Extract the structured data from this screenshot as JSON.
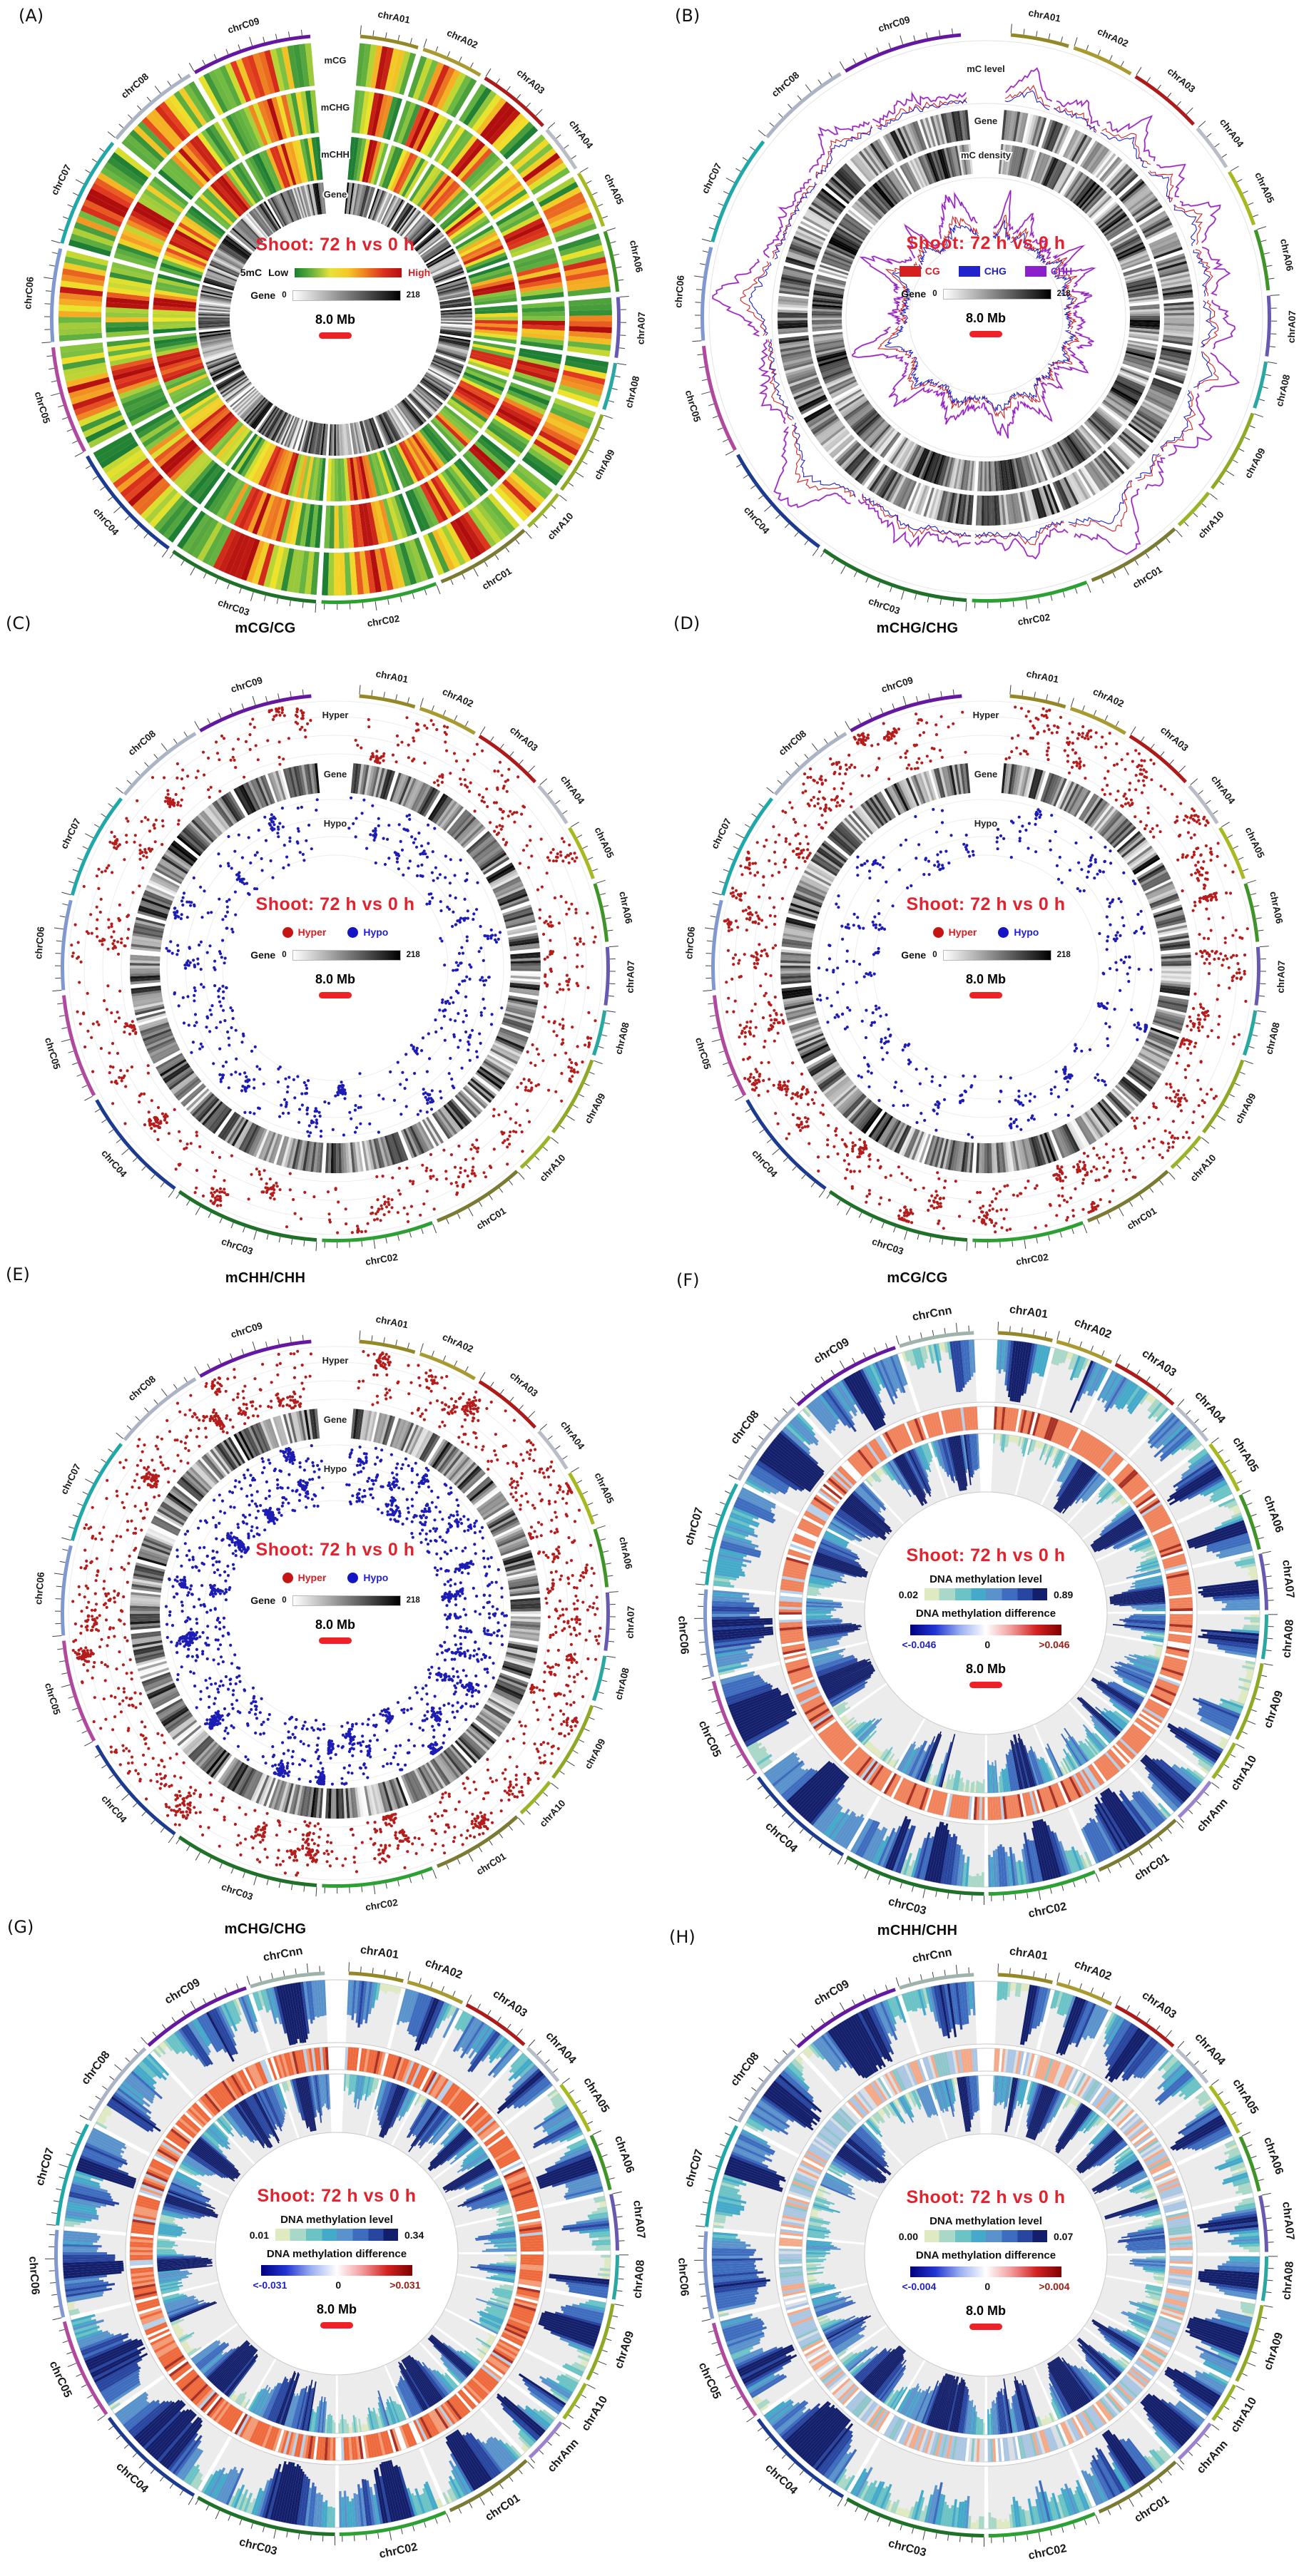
{
  "figure": {
    "caption": "Circos plots of DNA methylation, Shoot: 72 h vs 0 h"
  },
  "chromosome_sets": {
    "set19": {
      "names": [
        "chrA01",
        "chrA02",
        "chrA03",
        "chrA04",
        "chrA05",
        "chrA06",
        "chrA07",
        "chrA08",
        "chrA09",
        "chrA10",
        "chrC01",
        "chrC02",
        "chrC03",
        "chrC04",
        "chrC05",
        "chrC06",
        "chrC07",
        "chrC08",
        "chrC09"
      ],
      "sizes": [
        23.3,
        24.8,
        29.8,
        19.2,
        23.1,
        24.4,
        24.0,
        18.9,
        33.9,
        17.4,
        38.8,
        46.2,
        60.6,
        48.9,
        43.2,
        37.2,
        44.8,
        38.6,
        48.2
      ],
      "colors": [
        "#948727",
        "#a89a30",
        "#ad1a1a",
        "#b8bcc6",
        "#a8b820",
        "#3f9428",
        "#6858b0",
        "#28a8a0",
        "#8fa826",
        "#9ab428",
        "#7a7a33",
        "#2ca032",
        "#1f7028",
        "#1c3a90",
        "#b0489e",
        "#8098d0",
        "#20a8a8",
        "#aab4c4",
        "#6418a0"
      ]
    },
    "set21": {
      "names": [
        "chrA01",
        "chrA02",
        "chrA03",
        "chrA04",
        "chrA05",
        "chrA06",
        "chrA07",
        "chrA08",
        "chrA09",
        "chrA10",
        "chrAnn",
        "chrC01",
        "chrC02",
        "chrC03",
        "chrC04",
        "chrC05",
        "chrC06",
        "chrC07",
        "chrC08",
        "chrC09",
        "chrCnn"
      ],
      "sizes": [
        23.3,
        24.8,
        29.8,
        19.2,
        23.1,
        24.4,
        24.0,
        18.9,
        33.9,
        17.4,
        20.0,
        38.8,
        46.2,
        60.6,
        48.9,
        43.2,
        37.2,
        44.8,
        38.6,
        48.2,
        32.0
      ],
      "colors": [
        "#948727",
        "#a89a30",
        "#ad1a1a",
        "#b8bcc6",
        "#a8b820",
        "#3f9428",
        "#6858b0",
        "#28a8a0",
        "#8fa826",
        "#9ab428",
        "#9b82cc",
        "#7a7a33",
        "#2ca032",
        "#1f7028",
        "#1c3a90",
        "#b0489e",
        "#8098d0",
        "#20a8a8",
        "#aab4c4",
        "#6418a0",
        "#9fb3ab"
      ]
    }
  },
  "panels": [
    {
      "id": "A",
      "label": "(A)",
      "title": "",
      "type": "heat",
      "chrom_set": "set19",
      "ring_labels": [
        "mCG",
        "mCHG",
        "mCHH",
        "Gene"
      ],
      "center": {
        "title": "Shoot: 72 h vs 0 h",
        "smc_label": "5mC",
        "low": "Low",
        "high": "High",
        "gene_label": "Gene",
        "gene_min": "0",
        "gene_max": "218",
        "scale": "8.0 Mb"
      },
      "viz": {
        "seed": 11
      }
    },
    {
      "id": "B",
      "label": "(B)",
      "title": "",
      "type": "line",
      "chrom_set": "set19",
      "ring_labels": [
        "mC level",
        "Gene",
        "mC density"
      ],
      "center": {
        "title": "Shoot: 72 h vs 0 h",
        "cg": "CG",
        "chg": "CHG",
        "chh": "CHH",
        "gene_label": "Gene",
        "gene_min": "0",
        "gene_max": "218",
        "scale": "8.0 Mb"
      },
      "viz": {
        "seed": 22
      }
    },
    {
      "id": "C",
      "label": "(C)",
      "title": "mCG/CG",
      "type": "scatter",
      "chrom_set": "set19",
      "ring_labels": [
        "Hyper",
        "Gene",
        "Hypo"
      ],
      "center": {
        "title": "Shoot: 72 h vs 0 h",
        "hyper": "Hyper",
        "hypo": "Hypo",
        "gene_label": "Gene",
        "gene_min": "0",
        "gene_max": "218",
        "scale": "8.0 Mb"
      },
      "viz": {
        "seed": 33,
        "hyper_n": 850,
        "hypo_n": 620
      }
    },
    {
      "id": "D",
      "label": "(D)",
      "title": "mCHG/CHG",
      "type": "scatter",
      "chrom_set": "set19",
      "ring_labels": [
        "Hyper",
        "Gene",
        "Hypo"
      ],
      "center": {
        "title": "Shoot: 72 h vs 0 h",
        "hyper": "Hyper",
        "hypo": "Hypo",
        "gene_label": "Gene",
        "gene_min": "0",
        "gene_max": "218",
        "scale": "8.0 Mb"
      },
      "viz": {
        "seed": 44,
        "hyper_n": 1250,
        "hypo_n": 430
      }
    },
    {
      "id": "E",
      "label": "(E)",
      "title": "mCHH/CHH",
      "type": "scatter",
      "chrom_set": "set19",
      "ring_labels": [
        "Hyper",
        "Gene",
        "Hypo"
      ],
      "center": {
        "title": "Shoot: 72 h vs 0 h",
        "hyper": "Hyper",
        "hypo": "Hypo",
        "gene_label": "Gene",
        "gene_min": "0",
        "gene_max": "218",
        "scale": "8.0 Mb"
      },
      "viz": {
        "seed": 55,
        "hyper_n": 1500,
        "hypo_n": 1700
      }
    },
    {
      "id": "F",
      "label": "(F)",
      "title": "mCG/CG",
      "type": "hist",
      "chrom_set": "set21",
      "ring_labels": [],
      "center": {
        "title": "Shoot: 72 h vs 0 h",
        "level_label": "DNA methylation level",
        "level_min": "0.02",
        "level_max": "0.89",
        "diff_label": "DNA methylation difference",
        "diff_min": "<-0.046",
        "diff_zero": "0",
        "diff_max": ">0.046",
        "scale": "8.0 Mb"
      },
      "viz": {
        "seed": 66,
        "diff_weights": [
          [
            "#f0835c",
            0.76
          ],
          [
            "#ffffff",
            0.08
          ],
          [
            "#b8cfe8",
            0.08
          ],
          [
            "#a93226",
            0.08
          ]
        ]
      }
    },
    {
      "id": "G",
      "label": "(G)",
      "title": "mCHG/CHG",
      "type": "hist",
      "chrom_set": "set21",
      "ring_labels": [],
      "center": {
        "title": "Shoot: 72 h vs 0 h",
        "level_label": "DNA methylation level",
        "level_min": "0.01",
        "level_max": "0.34",
        "diff_label": "DNA methylation difference",
        "diff_min": "<-0.031",
        "diff_zero": "0",
        "diff_max": ">0.031",
        "scale": "8.0 Mb"
      },
      "viz": {
        "seed": 77,
        "diff_weights": [
          [
            "#ee6a3c",
            0.6
          ],
          [
            "#f29b76",
            0.18
          ],
          [
            "#ffffff",
            0.06
          ],
          [
            "#b8cfe8",
            0.08
          ],
          [
            "#a93226",
            0.08
          ]
        ]
      }
    },
    {
      "id": "H",
      "label": "(H)",
      "title": "mCHH/CHH",
      "type": "hist",
      "chrom_set": "set21",
      "ring_labels": [],
      "center": {
        "title": "Shoot: 72 h vs 0 h",
        "level_label": "DNA methylation level",
        "level_min": "0.00",
        "level_max": "0.07",
        "diff_label": "DNA methylation difference",
        "diff_min": "<-0.004",
        "diff_zero": "0",
        "diff_max": ">0.004",
        "scale": "8.0 Mb"
      },
      "viz": {
        "seed": 88,
        "diff_weights": [
          [
            "#aac6e2",
            0.32
          ],
          [
            "#d9dee5",
            0.2
          ],
          [
            "#f4a988",
            0.26
          ],
          [
            "#8fc6cc",
            0.14
          ],
          [
            "#ffffff",
            0.08
          ]
        ]
      }
    }
  ],
  "colors": {
    "center_title": "#e0232e",
    "hyper": "#b51d1d",
    "hypo": "#1d1db5",
    "cg": "#d62020",
    "chg": "#2323cc",
    "chh": "#8b1fc9",
    "scale_bar": "#ee2226"
  },
  "chart_data": [
    {
      "panel": "A",
      "type": "circos-heatmap",
      "comparison": "Shoot: 72 h vs 0 h",
      "rings": [
        "mCG",
        "mCHG",
        "mCHH",
        "Gene"
      ],
      "smc_scale": [
        "Low",
        "High"
      ],
      "gene_scale": [
        0,
        218
      ],
      "scale_bar": "8.0 Mb",
      "chromosome_set": "set19"
    },
    {
      "panel": "B",
      "type": "circos-line",
      "comparison": "Shoot: 72 h vs 0 h",
      "rings": [
        "mC level",
        "Gene",
        "mC density"
      ],
      "series": [
        "CG",
        "CHG",
        "CHH"
      ],
      "series_colors": [
        "#d62020",
        "#2323cc",
        "#8b1fc9"
      ],
      "gene_scale": [
        0,
        218
      ],
      "scale_bar": "8.0 Mb",
      "chromosome_set": "set19"
    },
    {
      "panel": "C",
      "type": "circos-scatter",
      "title": "mCG/CG",
      "comparison": "Shoot: 72 h vs 0 h",
      "rings": [
        "Hyper",
        "Gene",
        "Hypo"
      ],
      "legend": [
        "Hyper",
        "Hypo"
      ],
      "legend_colors": [
        "#b51d1d",
        "#1d1db5"
      ],
      "gene_scale": [
        0,
        218
      ],
      "scale_bar": "8.0 Mb",
      "chromosome_set": "set19"
    },
    {
      "panel": "D",
      "type": "circos-scatter",
      "title": "mCHG/CHG",
      "comparison": "Shoot: 72 h vs 0 h",
      "rings": [
        "Hyper",
        "Gene",
        "Hypo"
      ],
      "legend": [
        "Hyper",
        "Hypo"
      ],
      "legend_colors": [
        "#b51d1d",
        "#1d1db5"
      ],
      "gene_scale": [
        0,
        218
      ],
      "scale_bar": "8.0 Mb",
      "chromosome_set": "set19"
    },
    {
      "panel": "E",
      "type": "circos-scatter",
      "title": "mCHH/CHH",
      "comparison": "Shoot: 72 h vs 0 h",
      "rings": [
        "Hyper",
        "Gene",
        "Hypo"
      ],
      "legend": [
        "Hyper",
        "Hypo"
      ],
      "legend_colors": [
        "#b51d1d",
        "#1d1db5"
      ],
      "gene_scale": [
        0,
        218
      ],
      "scale_bar": "8.0 Mb",
      "chromosome_set": "set19"
    },
    {
      "panel": "F",
      "type": "circos-histogram",
      "title": "mCG/CG",
      "comparison": "Shoot: 72 h vs 0 h",
      "methylation_level_range": [
        0.02,
        0.89
      ],
      "methylation_difference_range": [
        "<-0.046",
        "0",
        ">0.046"
      ],
      "scale_bar": "8.0 Mb",
      "chromosome_set": "set21"
    },
    {
      "panel": "G",
      "type": "circos-histogram",
      "title": "mCHG/CHG",
      "comparison": "Shoot: 72 h vs 0 h",
      "methylation_level_range": [
        0.01,
        0.34
      ],
      "methylation_difference_range": [
        "<-0.031",
        "0",
        ">0.031"
      ],
      "scale_bar": "8.0 Mb",
      "chromosome_set": "set21"
    },
    {
      "panel": "H",
      "type": "circos-histogram",
      "title": "mCHH/CHH",
      "comparison": "Shoot: 72 h vs 0 h",
      "methylation_level_range": [
        0.0,
        0.07
      ],
      "methylation_difference_range": [
        "<-0.004",
        "0",
        ">0.004"
      ],
      "scale_bar": "8.0 Mb",
      "chromosome_set": "set21"
    }
  ]
}
